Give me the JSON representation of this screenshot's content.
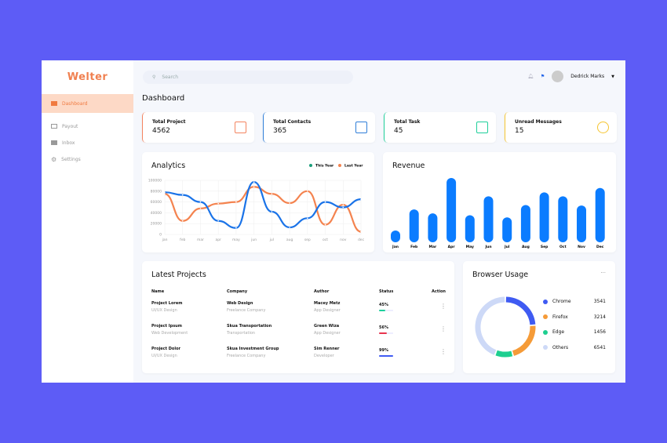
{
  "app": {
    "logo": "Welter"
  },
  "sidebar": {
    "items": [
      {
        "label": "Dashboard",
        "icon": "grid-icon",
        "active": true
      },
      {
        "label": "Payout",
        "icon": "card-icon"
      },
      {
        "label": "Inbox",
        "icon": "mail-icon"
      },
      {
        "label": "Settings",
        "icon": "gear-icon"
      }
    ]
  },
  "header": {
    "search_placeholder": "Search",
    "user": "Dedrick Marks"
  },
  "page_title": "Dashboard",
  "stats": [
    {
      "label": "Total Project",
      "value": "4562",
      "color": "#f4845f",
      "icon": "layers-icon"
    },
    {
      "label": "Total Contacts",
      "value": "365",
      "color": "#2f7ed8",
      "icon": "contacts-book-icon"
    },
    {
      "label": "Total Task",
      "value": "45",
      "color": "#1fcf9a",
      "icon": "clipboard-icon"
    },
    {
      "label": "Unread Messages",
      "value": "15",
      "color": "#f5c531",
      "icon": "chat-icon"
    }
  ],
  "chart_data": [
    {
      "type": "line",
      "title": "Analytics",
      "categories": [
        "jan",
        "feb",
        "mar",
        "apr",
        "may",
        "jun",
        "jul",
        "aug",
        "sep",
        "oct",
        "nov",
        "dec"
      ],
      "ylim": [
        0,
        100000
      ],
      "yticks": [
        "0",
        "20000",
        "40000",
        "60000",
        "80000",
        "100000"
      ],
      "grid": true,
      "legend": "top-right",
      "series": [
        {
          "name": "This Year",
          "color": "#1a73e8",
          "legend_color": "#1a9e7a",
          "values": [
            78000,
            73000,
            60000,
            25000,
            12000,
            97000,
            42000,
            13000,
            30000,
            60000,
            50000,
            65000
          ]
        },
        {
          "name": "Last Year",
          "color": "#f4834f",
          "legend_color": "#f4834f",
          "values": [
            75000,
            25000,
            48000,
            57000,
            60000,
            88000,
            75000,
            58000,
            80000,
            18000,
            55000,
            5000
          ]
        }
      ]
    },
    {
      "type": "bar",
      "title": "Revenue",
      "categories": [
        "Jan",
        "Feb",
        "Mar",
        "Apr",
        "May",
        "Jun",
        "Jul",
        "Aug",
        "Sep",
        "Oct",
        "Nov",
        "Dec"
      ],
      "values": [
        45,
        125,
        110,
        245,
        103,
        175,
        95,
        142,
        190,
        175,
        140,
        207
      ],
      "color": "#0b7cff"
    },
    {
      "type": "pie",
      "title": "Browser Usage",
      "labels": [
        "Chrome",
        "Firefox",
        "Edge",
        "Others"
      ],
      "values": [
        3541,
        3214,
        1456,
        6541
      ],
      "colors": [
        "#3f5bf2",
        "#f59b38",
        "#1ecf90",
        "#cdd9f7"
      ]
    }
  ],
  "projects": {
    "title": "Latest Projects",
    "columns": [
      "Name",
      "Company",
      "Author",
      "Status",
      "Action"
    ],
    "rows": [
      {
        "name": "Project Lorem",
        "type": "UI/UX Design",
        "company": "Web Design",
        "company_sub": "Freelance Company",
        "author": "Macey Metz",
        "role": "App Designer",
        "status": "45%",
        "progress": 45,
        "color": "#1ecf9a"
      },
      {
        "name": "Project Ipsum",
        "type": "Web Development",
        "company": "Skua Transportation",
        "company_sub": "Transportation",
        "author": "Green Wiza",
        "role": "App Designer",
        "status": "56%",
        "progress": 56,
        "color": "#e8344e"
      },
      {
        "name": "Project Dolor",
        "type": "UI/UX Design",
        "company": "Skua Investment Group",
        "company_sub": "Freelance Company",
        "author": "Sim Renner",
        "role": "Developer",
        "status": "99%",
        "progress": 99,
        "color": "#3f5bf2"
      }
    ]
  },
  "browser": {
    "menu": "···"
  }
}
